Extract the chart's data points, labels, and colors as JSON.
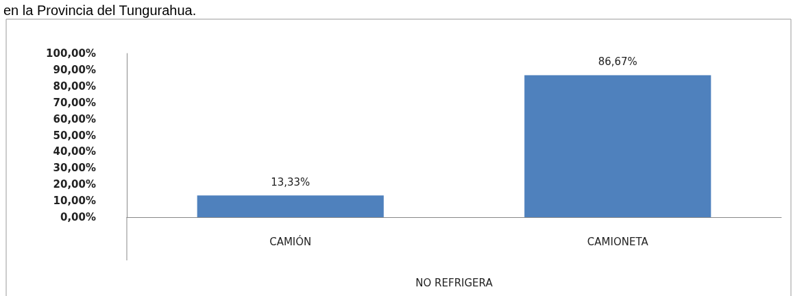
{
  "chart_data": {
    "type": "bar",
    "title": "en la Provincia del Tungurahua.",
    "xlabel": "NO REFRIGERA",
    "categories": [
      "CAMIÓN",
      "CAMIONETA"
    ],
    "values": [
      13.33,
      86.67
    ],
    "color": "#4f81bd",
    "value_labels": [
      "13,33%",
      "86,67%"
    ],
    "ylim": [
      0,
      100
    ],
    "yticks": [
      {
        "value": 0,
        "label": "0,00%"
      },
      {
        "value": 10,
        "label": "10,00%"
      },
      {
        "value": 20,
        "label": "20,00%"
      },
      {
        "value": 30,
        "label": "30,00%"
      },
      {
        "value": 40,
        "label": "40,00%"
      },
      {
        "value": 50,
        "label": "50,00%"
      },
      {
        "value": 60,
        "label": "60,00%"
      },
      {
        "value": 70,
        "label": "70,00%"
      },
      {
        "value": 80,
        "label": "80,00%"
      },
      {
        "value": 90,
        "label": "90,00%"
      },
      {
        "value": 100,
        "label": "100,00%"
      }
    ],
    "grid": false
  }
}
